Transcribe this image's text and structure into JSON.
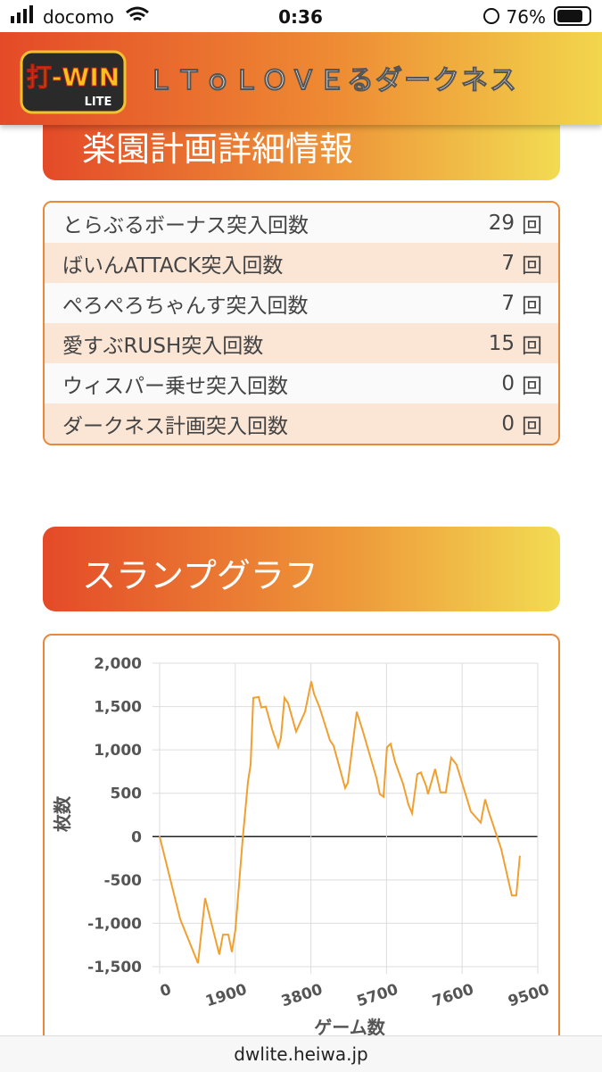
{
  "status_bar": {
    "carrier": "docomo",
    "time": "0:36",
    "battery": "76%"
  },
  "header": {
    "logo_top": "打-WIN",
    "logo_bottom": "LITE",
    "title": "ＬＴｏＬＯＶＥるダークネス"
  },
  "section1": {
    "title": "楽園計画詳細情報",
    "rows": [
      {
        "label": "とらぶるボーナス突入回数",
        "count": 29,
        "unit": "回"
      },
      {
        "label": "ばいんATTACK突入回数",
        "count": 7,
        "unit": "回"
      },
      {
        "label": "ぺろぺろちゃんす突入回数",
        "count": 7,
        "unit": "回"
      },
      {
        "label": "愛すぶRUSH突入回数",
        "count": 15,
        "unit": "回"
      },
      {
        "label": "ウィスパー乗せ突入回数",
        "count": 0,
        "unit": "回"
      },
      {
        "label": "ダークネス計画突入回数",
        "count": 0,
        "unit": "回"
      }
    ]
  },
  "section2": {
    "title": "スランプグラフ"
  },
  "chart_data": {
    "type": "line",
    "color": "#f0a030",
    "x_label": "ゲーム数",
    "y_label": "枚数",
    "grid": true,
    "x": [
      0,
      515,
      963,
      1143,
      1500,
      1590,
      1725,
      1815,
      1905,
      2084,
      2218,
      2285,
      2352,
      2487,
      2554,
      2666,
      2823,
      2980,
      3047,
      3137,
      3226,
      3428,
      3652,
      3809,
      3876,
      4011,
      4280,
      4369,
      4660,
      4727,
      4951,
      5108,
      5444,
      5533,
      5623,
      5712,
      5802,
      5914,
      6115,
      6250,
      6340,
      6474,
      6563,
      6698,
      6742,
      6921,
      7056,
      7190,
      7325,
      7459,
      7818,
      8065,
      8177,
      8266,
      8580,
      8849,
      8961,
      9050
    ],
    "values": [
      0,
      -950,
      -1460,
      -710,
      -1360,
      -1130,
      -1130,
      -1330,
      -1070,
      -40,
      630,
      830,
      1600,
      1610,
      1490,
      1500,
      1240,
      1030,
      1140,
      1600,
      1540,
      1210,
      1440,
      1790,
      1650,
      1500,
      1110,
      1050,
      560,
      620,
      1440,
      1210,
      680,
      490,
      460,
      1030,
      1070,
      860,
      610,
      370,
      270,
      720,
      740,
      580,
      490,
      780,
      510,
      510,
      910,
      830,
      290,
      160,
      430,
      290,
      -140,
      -680,
      -680,
      -220
    ],
    "xlim": [
      0,
      9500
    ],
    "xticks": [
      0,
      1900,
      3800,
      5700,
      7600,
      9500
    ],
    "ylim": [
      -1500,
      2000
    ],
    "yticks": [
      {
        "value": -1500,
        "label": "-1,500"
      },
      {
        "value": -1000,
        "label": "-1,000"
      },
      -500,
      0,
      500,
      {
        "value": 1000,
        "label": "1,000"
      },
      {
        "value": 1500,
        "label": "1,500"
      },
      {
        "value": 2000,
        "label": "2,000"
      }
    ]
  },
  "url_bar": {
    "url": "dwlite.heiwa.jp"
  }
}
